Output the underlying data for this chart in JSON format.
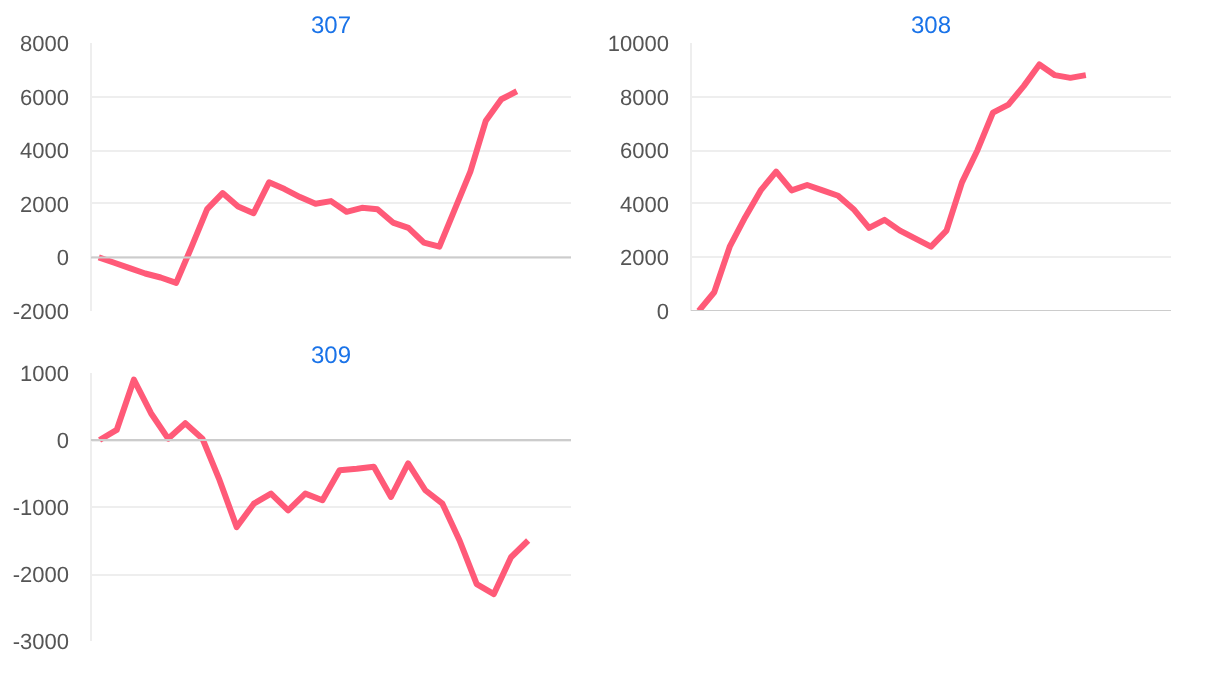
{
  "chart_data": [
    {
      "type": "line",
      "title": "307",
      "categories": [
        null,
        null,
        null,
        null,
        null,
        null,
        null,
        null,
        null,
        null,
        null,
        null,
        null,
        null,
        null,
        null,
        null,
        null,
        null,
        null,
        null,
        null,
        null,
        null,
        null,
        null,
        null,
        null,
        null,
        null,
        null
      ],
      "series": [
        {
          "color": "#ff5a78",
          "values": [
            0,
            -200,
            -400,
            -600,
            -750,
            -950,
            400,
            1800,
            2400,
            1900,
            1650,
            2800,
            2550,
            2250,
            2000,
            2100,
            1700,
            1850,
            1800,
            1300,
            1100,
            550,
            400,
            1800,
            3200,
            5100,
            5900,
            6200,
            null,
            null,
            null
          ]
        }
      ],
      "ylim": [
        -2000,
        8000
      ],
      "yticks": [
        -2000,
        0,
        2000,
        4000,
        6000,
        8000
      ],
      "grid": "y",
      "tick_labels": "y",
      "line_style": "solid",
      "marker": "none",
      "ref_lines": [
        {
          "axis": "y",
          "value": 0,
          "color": "#cccccc"
        }
      ]
    },
    {
      "type": "line",
      "title": "308",
      "categories": [
        null,
        null,
        null,
        null,
        null,
        null,
        null,
        null,
        null,
        null,
        null,
        null,
        null,
        null,
        null,
        null,
        null,
        null,
        null,
        null,
        null,
        null,
        null,
        null,
        null,
        null,
        null,
        null,
        null,
        null,
        null
      ],
      "series": [
        {
          "color": "#ff5a78",
          "values": [
            0,
            700,
            2400,
            3500,
            4500,
            5200,
            4500,
            4700,
            4500,
            4300,
            3800,
            3100,
            3400,
            3000,
            2700,
            2400,
            3000,
            4800,
            6000,
            7400,
            7700,
            8400,
            9200,
            8800,
            8700,
            8800,
            null,
            null,
            null,
            null,
            null
          ]
        }
      ],
      "ylim": [
        0,
        10000
      ],
      "yticks": [
        0,
        2000,
        4000,
        6000,
        8000,
        10000
      ],
      "grid": "y",
      "tick_labels": "y",
      "line_style": "solid",
      "marker": "none",
      "ref_lines": [
        {
          "axis": "y",
          "value": 0,
          "color": "#cccccc"
        }
      ]
    },
    {
      "type": "line",
      "title": "309",
      "categories": [
        null,
        null,
        null,
        null,
        null,
        null,
        null,
        null,
        null,
        null,
        null,
        null,
        null,
        null,
        null,
        null,
        null,
        null,
        null,
        null,
        null,
        null,
        null,
        null,
        null,
        null,
        null,
        null
      ],
      "series": [
        {
          "color": "#ff5a78",
          "values": [
            0,
            150,
            900,
            400,
            20,
            250,
            20,
            -600,
            -1300,
            -950,
            -800,
            -1050,
            -800,
            -900,
            -450,
            -430,
            -400,
            -850,
            -350,
            -750,
            -950,
            -1500,
            -2150,
            -2300,
            -1750,
            -1500,
            null,
            null
          ]
        }
      ],
      "ylim": [
        -3000,
        1000
      ],
      "yticks": [
        -3000,
        -2000,
        -1000,
        0,
        1000
      ],
      "grid": "y",
      "tick_labels": "y",
      "line_style": "solid",
      "marker": "none",
      "ref_lines": [
        {
          "axis": "y",
          "value": 0,
          "color": "#cccccc"
        }
      ]
    }
  ]
}
